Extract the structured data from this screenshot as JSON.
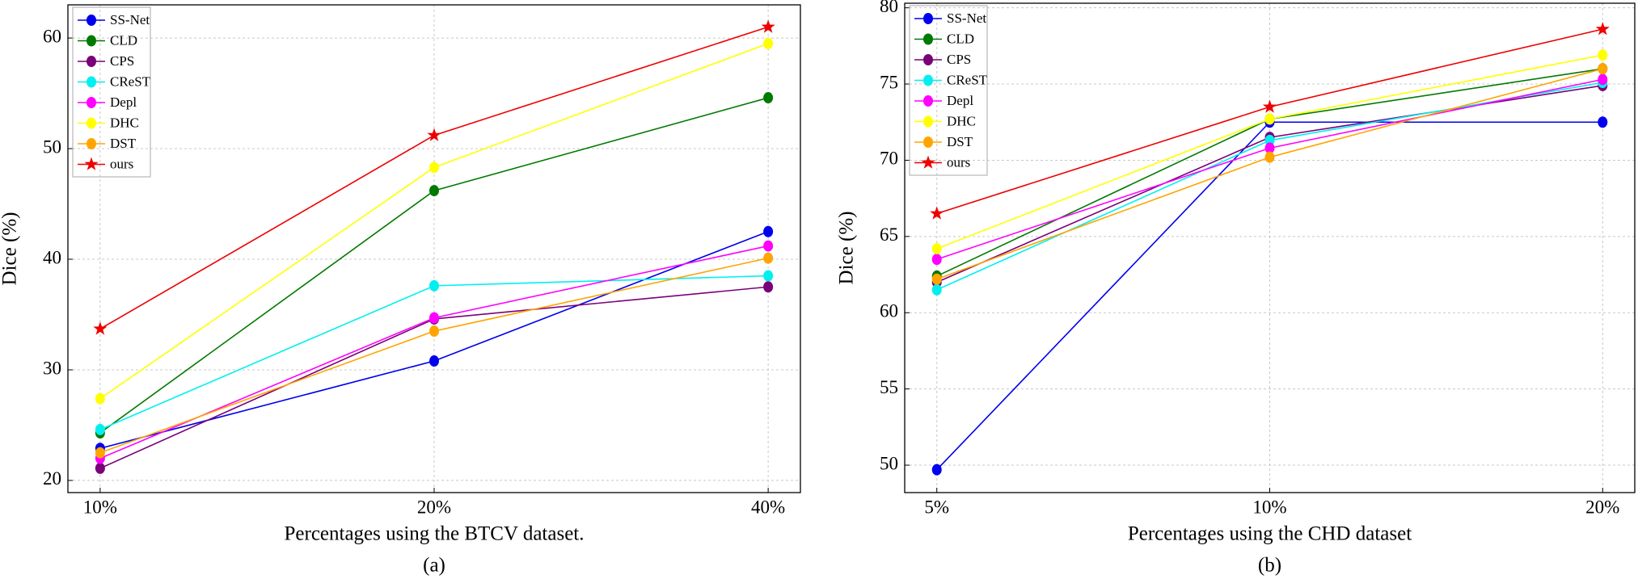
{
  "chart_data": [
    {
      "type": "line",
      "xlabel": "Percentages using the BTCV dataset.",
      "ylabel": "Dice (%)",
      "caption": "(a)",
      "categories": [
        "10%",
        "20%",
        "40%"
      ],
      "ylim": [
        18.9,
        63
      ],
      "yticks": [
        20,
        30,
        40,
        50,
        60
      ],
      "grid": true,
      "legend": "upper left",
      "series": [
        {
          "name": "SS-Net",
          "color": "#0000ee",
          "marker": "o",
          "values": [
            22.9,
            30.8,
            42.5
          ]
        },
        {
          "name": "CLD",
          "color": "#007a00",
          "marker": "o",
          "values": [
            24.3,
            46.2,
            54.6
          ]
        },
        {
          "name": "CPS",
          "color": "#7a007a",
          "marker": "o",
          "values": [
            21.1,
            34.6,
            37.5
          ]
        },
        {
          "name": "CReST",
          "color": "#00f0f0",
          "marker": "o",
          "values": [
            24.6,
            37.6,
            38.5
          ]
        },
        {
          "name": "Depl",
          "color": "#ff00ff",
          "marker": "o",
          "values": [
            22.0,
            34.7,
            41.2
          ]
        },
        {
          "name": "DHC",
          "color": "#ffff00",
          "marker": "o",
          "values": [
            27.4,
            48.3,
            59.5
          ]
        },
        {
          "name": "DST",
          "color": "#ffa500",
          "marker": "o",
          "values": [
            22.5,
            33.5,
            40.1
          ]
        },
        {
          "name": "ours",
          "color": "#ee0000",
          "marker": "*",
          "values": [
            33.7,
            51.2,
            61.0
          ]
        }
      ]
    },
    {
      "type": "line",
      "xlabel": "Percentages using the CHD dataset",
      "ylabel": "Dice (%)",
      "caption": "(b)",
      "categories": [
        "5%",
        "10%",
        "20%"
      ],
      "ylim": [
        48.2,
        80.3
      ],
      "yticks": [
        50,
        55,
        60,
        65,
        70,
        75,
        80
      ],
      "grid": true,
      "legend": "upper left",
      "series": [
        {
          "name": "SS-Net",
          "color": "#0000ee",
          "marker": "o",
          "values": [
            49.7,
            72.5,
            72.5
          ]
        },
        {
          "name": "CLD",
          "color": "#007a00",
          "marker": "o",
          "values": [
            62.4,
            72.7,
            76.0
          ]
        },
        {
          "name": "CPS",
          "color": "#7a007a",
          "marker": "o",
          "values": [
            62.0,
            71.5,
            74.9
          ]
        },
        {
          "name": "CReST",
          "color": "#00f0f0",
          "marker": "o",
          "values": [
            61.5,
            71.3,
            75.1
          ]
        },
        {
          "name": "Depl",
          "color": "#ff00ff",
          "marker": "o",
          "values": [
            63.5,
            70.8,
            75.3
          ]
        },
        {
          "name": "DHC",
          "color": "#ffff00",
          "marker": "o",
          "values": [
            64.2,
            72.7,
            76.9
          ]
        },
        {
          "name": "DST",
          "color": "#ffa500",
          "marker": "o",
          "values": [
            62.2,
            70.2,
            76.0
          ]
        },
        {
          "name": "ours",
          "color": "#ee0000",
          "marker": "*",
          "values": [
            66.5,
            73.5,
            78.6
          ]
        }
      ]
    }
  ]
}
